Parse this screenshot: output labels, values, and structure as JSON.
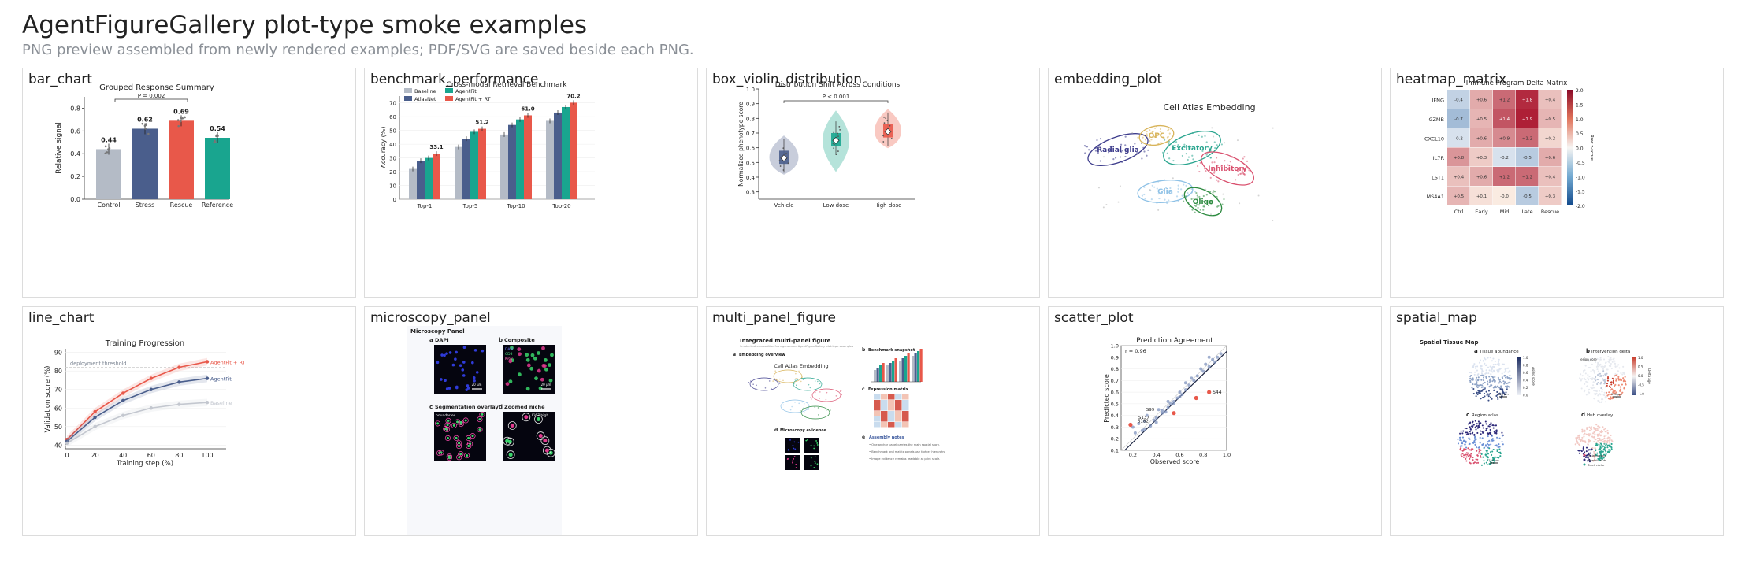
{
  "page": {
    "title": "AgentFigureGallery plot-type smoke examples",
    "subtitle": "PNG preview assembled from newly rendered examples; PDF/SVG are saved beside each PNG."
  },
  "panels": [
    {
      "label": "bar_chart"
    },
    {
      "label": "benchmark_performance"
    },
    {
      "label": "box_violin_distribution"
    },
    {
      "label": "embedding_plot"
    },
    {
      "label": "heatmap_matrix"
    },
    {
      "label": "line_chart"
    },
    {
      "label": "microscopy_panel"
    },
    {
      "label": "multi_panel_figure"
    },
    {
      "label": "scatter_plot"
    },
    {
      "label": "spatial_map"
    }
  ],
  "colors": {
    "grey": "#b4bbc6",
    "navy": "#4a5e8c",
    "red": "#e8584a",
    "teal": "#19a58f",
    "lightblue": "#c9d6ec"
  },
  "chart_data": [
    {
      "id": "bar_chart",
      "type": "bar",
      "title": "Grouped Response Summary",
      "categories": [
        "Control",
        "Stress",
        "Rescue",
        "Reference"
      ],
      "values": [
        0.44,
        0.62,
        0.69,
        0.54
      ],
      "value_labels": [
        "0.44",
        "0.62",
        "0.69",
        "0.54"
      ],
      "ylabel": "Relative signal",
      "ylim": [
        0,
        0.9
      ],
      "yticks": [
        "0.0",
        "0.2",
        "0.4",
        "0.6",
        "0.8"
      ],
      "annotation": "P = 0.002"
    },
    {
      "id": "benchmark_performance",
      "type": "bar",
      "title": "Cross-modal Retrieval Benchmark",
      "categories": [
        "Top-1",
        "Top-5",
        "Top-10",
        "Top-20"
      ],
      "series": [
        {
          "name": "Baseline",
          "values": [
            22,
            38,
            47,
            57
          ]
        },
        {
          "name": "AtlasNet",
          "values": [
            28,
            44,
            54,
            63
          ]
        },
        {
          "name": "AgentFit",
          "values": [
            30,
            49,
            58,
            67
          ]
        },
        {
          "name": "AgentFit + RT",
          "values": [
            33.1,
            51.2,
            61.0,
            70.2
          ]
        }
      ],
      "value_labels": [
        "33.1",
        "51.2",
        "61.0",
        "70.2"
      ],
      "ylabel": "Accuracy (%)",
      "ylim": [
        0,
        75
      ],
      "yticks": [
        "0",
        "10",
        "20",
        "30",
        "40",
        "50",
        "60",
        "70"
      ]
    },
    {
      "id": "box_violin_distribution",
      "type": "box",
      "title": "Distribution Shift Across Conditions",
      "categories": [
        "Vehicle",
        "Low dose",
        "High dose"
      ],
      "medians": [
        0.53,
        0.65,
        0.71
      ],
      "ylabel": "Normalized phenotype score",
      "ylim": [
        0.25,
        1.0
      ],
      "yticks": [
        "0.3",
        "0.4",
        "0.5",
        "0.6",
        "0.7",
        "0.8",
        "0.9",
        "1.0"
      ],
      "annotation": "P < 0.001"
    },
    {
      "id": "embedding_plot",
      "type": "scatter",
      "title": "Cell Atlas Embedding",
      "clusters": [
        "Radial glia",
        "OPC",
        "Excitatory",
        "Inhibitory",
        "Glia",
        "Oligo"
      ]
    },
    {
      "id": "heatmap_matrix",
      "type": "heatmap",
      "title": "Immune Program Delta Matrix",
      "rows": [
        "IFNG",
        "GZMB",
        "CXCL10",
        "IL7R",
        "LST1",
        "MS4A1"
      ],
      "cols": [
        "Ctrl",
        "Early",
        "Mid",
        "Late",
        "Rescue"
      ],
      "values": [
        [
          -0.4,
          0.6,
          1.2,
          1.8,
          0.4
        ],
        [
          -0.7,
          0.5,
          1.4,
          1.9,
          0.5
        ],
        [
          -0.2,
          0.6,
          0.9,
          1.2,
          0.2
        ],
        [
          0.8,
          0.3,
          -0.2,
          -0.5,
          0.6
        ],
        [
          0.4,
          0.6,
          1.2,
          1.2,
          0.4
        ],
        [
          0.5,
          0.1,
          -0.0,
          -0.5,
          0.3
        ]
      ],
      "cell_labels": [
        [
          "-0.4",
          "+0.6",
          "+1.2",
          "+1.8",
          "+0.4"
        ],
        [
          "-0.7",
          "+0.5",
          "+1.4",
          "+1.9",
          "+0.5"
        ],
        [
          "-0.2",
          "+0.6",
          "+0.9",
          "+1.2",
          "+0.2"
        ],
        [
          "+0.8",
          "+0.3",
          "-0.2",
          "-0.5",
          "+0.6"
        ],
        [
          "+0.4",
          "+0.6",
          "+1.2",
          "+1.2",
          "+0.4"
        ],
        [
          "+0.5",
          "+0.1",
          "-0.0",
          "-0.5",
          "+0.3"
        ]
      ],
      "colorbar_label": "Row z-score",
      "colorbar_ticks": [
        "2.0",
        "1.5",
        "1.0",
        "0.5",
        "0.0",
        "-0.5",
        "-1.0",
        "-1.5",
        "-2.0"
      ]
    },
    {
      "id": "line_chart",
      "type": "line",
      "title": "Training Progression",
      "x": [
        0,
        20,
        40,
        60,
        80,
        100
      ],
      "xticks": [
        "0",
        "20",
        "40",
        "60",
        "80",
        "100"
      ],
      "series": [
        {
          "name": "AgentFit + RT",
          "values": [
            43,
            58,
            68,
            76,
            82,
            85
          ]
        },
        {
          "name": "AgentFit",
          "values": [
            42,
            55,
            64,
            70,
            74,
            76
          ]
        },
        {
          "name": "Baseline",
          "values": [
            41,
            50,
            56,
            60,
            62,
            63
          ]
        }
      ],
      "xlabel": "Training step (%)",
      "ylabel": "Validation score (%)",
      "ylim": [
        38,
        92
      ],
      "yticks": [
        "40",
        "50",
        "60",
        "70",
        "80",
        "90"
      ],
      "annotation": "deployment threshold",
      "threshold": 82
    },
    {
      "id": "microscopy_panel",
      "type": "image_panel",
      "title": "Microscopy Panel",
      "subpanels": [
        {
          "letter": "a",
          "name": "DAPI"
        },
        {
          "letter": "b",
          "name": "Composite"
        },
        {
          "letter": "c",
          "name": "Segmentation overlay"
        },
        {
          "letter": "d",
          "name": "Zoomed niche"
        }
      ],
      "composite_legend": [
        "DAPI",
        "CD3",
        "Ki67"
      ],
      "scalebar_labels": [
        "20 µm",
        "20 µm"
      ],
      "inset_labels": [
        "boundaries",
        "Ki67 high"
      ]
    },
    {
      "id": "multi_panel_figure",
      "type": "composite",
      "title": "Integrated multi-panel figure",
      "caption": "Smoke-test composition from generated AgentFigureGallery plot-type examples",
      "subpanels": [
        {
          "letter": "a",
          "name": "Embedding overview"
        },
        {
          "letter": "b",
          "name": "Benchmark snapshot"
        },
        {
          "letter": "c",
          "name": "Expression matrix"
        },
        {
          "letter": "d",
          "name": "Microscopy evidence"
        },
        {
          "letter": "e",
          "name": "Assembly notes"
        }
      ],
      "inner_title": "Cell Atlas Embedding",
      "notes": [
        "One anchor panel carries the main spatial story.",
        "Benchmark and matrix panels use tighter hierarchy.",
        "Image evidence remains readable at print scale."
      ]
    },
    {
      "id": "scatter_plot",
      "type": "scatter",
      "title": "Prediction Agreement",
      "xlabel": "Observed score",
      "ylabel": "Predicted score",
      "xlim": [
        0.1,
        1.0
      ],
      "ylim": [
        0.1,
        1.0
      ],
      "xticks": [
        "0.2",
        "0.4",
        "0.6",
        "0.8",
        "1.0"
      ],
      "yticks": [
        "0.1",
        "0.2",
        "0.3",
        "0.4",
        "0.5",
        "0.6",
        "0.7",
        "0.8",
        "0.9",
        "1.0"
      ],
      "annotation": "r = 0.96",
      "labeled_points": [
        "S44",
        "S99",
        "S137",
        "S182"
      ],
      "points": [
        [
          0.18,
          0.32
        ],
        [
          0.2,
          0.3
        ],
        [
          0.22,
          0.25
        ],
        [
          0.25,
          0.33
        ],
        [
          0.28,
          0.27
        ],
        [
          0.3,
          0.35
        ],
        [
          0.32,
          0.4
        ],
        [
          0.35,
          0.31
        ],
        [
          0.38,
          0.36
        ],
        [
          0.4,
          0.38
        ],
        [
          0.42,
          0.45
        ],
        [
          0.45,
          0.42
        ],
        [
          0.48,
          0.43
        ],
        [
          0.5,
          0.47
        ],
        [
          0.52,
          0.5
        ],
        [
          0.55,
          0.52
        ],
        [
          0.58,
          0.55
        ],
        [
          0.6,
          0.6
        ],
        [
          0.62,
          0.58
        ],
        [
          0.65,
          0.62
        ],
        [
          0.68,
          0.66
        ],
        [
          0.7,
          0.72
        ],
        [
          0.72,
          0.7
        ],
        [
          0.75,
          0.74
        ],
        [
          0.78,
          0.8
        ],
        [
          0.8,
          0.78
        ],
        [
          0.82,
          0.84
        ],
        [
          0.85,
          0.82
        ],
        [
          0.88,
          0.88
        ],
        [
          0.9,
          0.86
        ],
        [
          0.92,
          0.9
        ],
        [
          0.95,
          0.93
        ],
        [
          0.3,
          0.28
        ],
        [
          0.4,
          0.34
        ],
        [
          0.55,
          0.5
        ],
        [
          0.65,
          0.68
        ],
        [
          0.85,
          0.9
        ],
        [
          0.5,
          0.52
        ],
        [
          0.6,
          0.56
        ],
        [
          0.45,
          0.44
        ]
      ]
    },
    {
      "id": "spatial_map",
      "type": "spatial",
      "title": "Spatial Tissue Map",
      "subpanels": [
        {
          "letter": "a",
          "name": "Tissue abundance"
        },
        {
          "letter": "b",
          "name": "Intervention delta"
        },
        {
          "letter": "c",
          "name": "Region atlas"
        },
        {
          "letter": "d",
          "name": "Hub overlay"
        }
      ],
      "scalebar_labels": [
        "250 µm",
        "250 µm",
        "250 µm"
      ],
      "inset_label": "lesion core",
      "colorbar_a_label": "Aging score",
      "colorbar_b_label": "Delta age",
      "colorbar_a_ticks": [
        "1.0",
        "0.8",
        "0.6",
        "0.4",
        "0.2",
        "0.0"
      ],
      "colorbar_b_ticks": [
        "1.0",
        "0.5",
        "0.0",
        "-0.5",
        "-1.0"
      ],
      "hub_legend": [
        "Main tumour",
        "Myeloid hub",
        "T-cell niche"
      ]
    }
  ]
}
